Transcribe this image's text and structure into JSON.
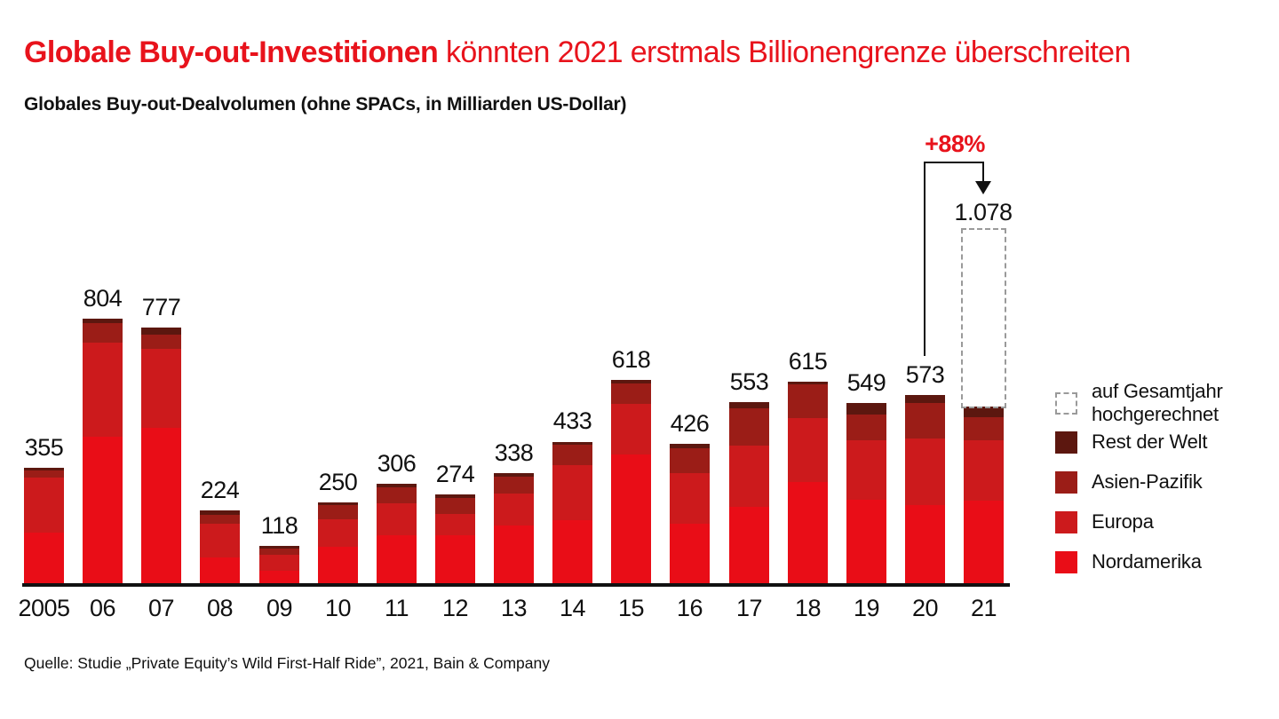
{
  "title": {
    "emphasis": "Globale Buy-out-Investitionen",
    "rest": " könnten 2021 erstmals Billionengrenze überschreiten"
  },
  "subtitle": "Globales Buy-out-Dealvolumen (ohne SPACs, in Milliarden US-Dollar)",
  "source": "Quelle: Studie „Private Equity’s Wild First-Half Ride”, 2021, Bain & Company",
  "colors": {
    "accent_red": "#e8131c",
    "nordamerika": "#e90d17",
    "europa": "#cc1a1c",
    "asien_pazifik": "#9b1d17",
    "rest_der_welt": "#5c170f",
    "dashed_outline": "#9a9a9a",
    "axis": "#111111"
  },
  "legend": {
    "items": [
      {
        "label": "auf Gesamtjahr hochgerechnet",
        "swatch": "dashed",
        "color": ""
      },
      {
        "label": "Rest der Welt",
        "swatch": "solid",
        "color": "#5c170f"
      },
      {
        "label": "Asien-Pazifik",
        "swatch": "solid",
        "color": "#9b1d17"
      },
      {
        "label": "Europa",
        "swatch": "solid",
        "color": "#cc1a1c"
      },
      {
        "label": "Nordamerika",
        "swatch": "solid",
        "color": "#e90d17"
      }
    ]
  },
  "chart_data": {
    "type": "bar",
    "stacked": true,
    "title": "Globales Buy-out-Dealvolumen (ohne SPACs, in Milliarden US-Dollar)",
    "unit": "Milliarden US-Dollar",
    "grid": false,
    "legend_position": "right",
    "ylim": [
      0,
      1100
    ],
    "categories": [
      "2005",
      "06",
      "07",
      "08",
      "09",
      "10",
      "11",
      "12",
      "13",
      "14",
      "15",
      "16",
      "17",
      "18",
      "19",
      "20",
      "21"
    ],
    "series": [
      {
        "name": "Nordamerika",
        "color": "#e90d17",
        "values": [
          158,
          448,
          474,
          82,
          42,
          116,
          150,
          150,
          180,
          195,
          394,
          185,
          236,
          310,
          257,
          241,
          255
        ]
      },
      {
        "name": "Europa",
        "color": "#cc1a1c",
        "values": [
          166,
          284,
          238,
          104,
          48,
          82,
          96,
          65,
          96,
          168,
          152,
          154,
          185,
          195,
          180,
          201,
          183
        ]
      },
      {
        "name": "Asien-Pazifik",
        "color": "#9b1d17",
        "values": [
          22,
          60,
          45,
          25,
          20,
          42,
          48,
          47,
          52,
          60,
          62,
          75,
          112,
          100,
          77,
          108,
          68
        ]
      },
      {
        "name": "Rest der Welt",
        "color": "#5c170f",
        "values": [
          9,
          12,
          20,
          13,
          8,
          10,
          12,
          12,
          10,
          10,
          10,
          12,
          20,
          10,
          35,
          23,
          33
        ]
      }
    ],
    "totals": [
      355,
      804,
      777,
      224,
      118,
      250,
      306,
      274,
      338,
      433,
      618,
      426,
      553,
      615,
      549,
      573,
      539
    ],
    "total_labels": [
      "355",
      "804",
      "777",
      "224",
      "118",
      "250",
      "306",
      "274",
      "338",
      "433",
      "618",
      "426",
      "553",
      "615",
      "549",
      "573",
      ""
    ],
    "projection": {
      "category": "21",
      "total": 1078,
      "label": "1.078",
      "growth_label": "+88%",
      "note": "auf Gesamtjahr hochgerechnet"
    }
  }
}
